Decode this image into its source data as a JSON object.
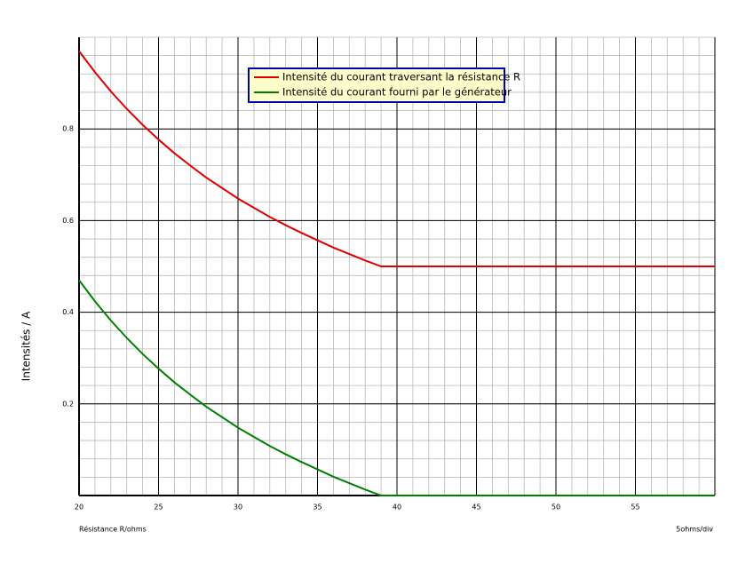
{
  "chart_data": {
    "type": "line",
    "x_label": "Résistance R/ohms",
    "y_label": "Intensités / A",
    "scale_note": "5ohms/div",
    "x": [
      20,
      21,
      22,
      23,
      24,
      25,
      26,
      27,
      28,
      29,
      30,
      31,
      32,
      33,
      34,
      35,
      36,
      37,
      38,
      39,
      40,
      41,
      42,
      43,
      44,
      45,
      46,
      47,
      48,
      49,
      50,
      51,
      52,
      53,
      54,
      55,
      56,
      57,
      58,
      59,
      60
    ],
    "series": [
      {
        "name": "Intensité du courant traversant la résistance R",
        "color": "#dd0000",
        "values": [
          0.97,
          0.924,
          0.882,
          0.844,
          0.809,
          0.777,
          0.747,
          0.72,
          0.694,
          0.671,
          0.648,
          0.628,
          0.608,
          0.59,
          0.573,
          0.557,
          0.541,
          0.527,
          0.513,
          0.5,
          0.5,
          0.5,
          0.5,
          0.5,
          0.5,
          0.5,
          0.5,
          0.5,
          0.5,
          0.5,
          0.5,
          0.5,
          0.5,
          0.5,
          0.5,
          0.5,
          0.5,
          0.5,
          0.5,
          0.5,
          0.5
        ]
      },
      {
        "name": "Intensité du courant fourni par le générateur",
        "color": "#008000",
        "values": [
          0.47,
          0.424,
          0.382,
          0.344,
          0.309,
          0.277,
          0.247,
          0.22,
          0.194,
          0.171,
          0.148,
          0.128,
          0.108,
          0.09,
          0.073,
          0.057,
          0.041,
          0.027,
          0.013,
          0,
          0,
          0,
          0,
          0,
          0,
          0,
          0,
          0,
          0,
          0,
          0,
          0,
          0,
          0,
          0,
          0,
          0,
          0,
          0,
          0,
          0
        ]
      }
    ],
    "xlim": [
      20,
      60
    ],
    "xticks": [
      20,
      25,
      30,
      35,
      40,
      45,
      50,
      55
    ],
    "ylim": [
      0,
      1
    ],
    "yticks": [
      0.2,
      0.4,
      0.6,
      0.8
    ],
    "grid": true
  }
}
